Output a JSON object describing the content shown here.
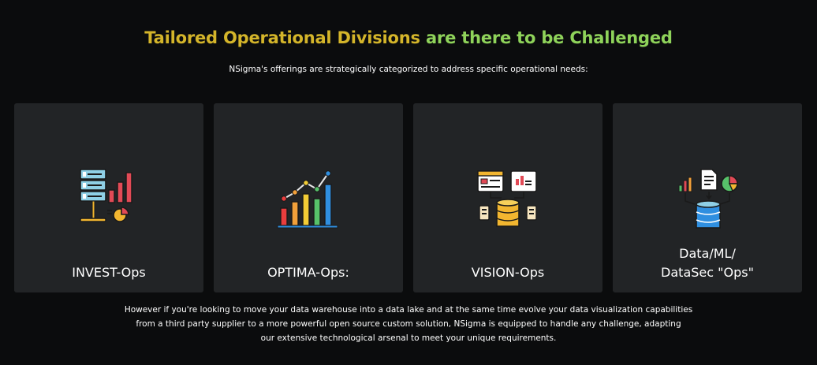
{
  "header": {
    "title_part1": "Tailored Operational Divisions",
    "title_part2": "are there to be Challenged",
    "subtitle": "NSigma's offerings are strategically categorized to address specific operational needs:"
  },
  "cards": [
    {
      "label": "INVEST-Ops",
      "icon": "server-bar-chart-icon"
    },
    {
      "label": "OPTIMA-Ops:",
      "icon": "growth-bar-chart-icon"
    },
    {
      "label": "VISION-Ops",
      "icon": "dashboard-database-icon"
    },
    {
      "label_line1": "Data/ML/",
      "label_line2": "DataSec \"Ops\"",
      "icon": "data-analytics-database-icon"
    }
  ],
  "footer": {
    "line1": "However if you're looking to move your data warehouse into a data lake and at the same time evolve your data visualization capabilities",
    "line2": "from a third party supplier to a more powerful open source custom solution, NSigma is equipped to handle any challenge, adapting",
    "line3": "our extensive technological arsenal to meet your unique requirements."
  }
}
